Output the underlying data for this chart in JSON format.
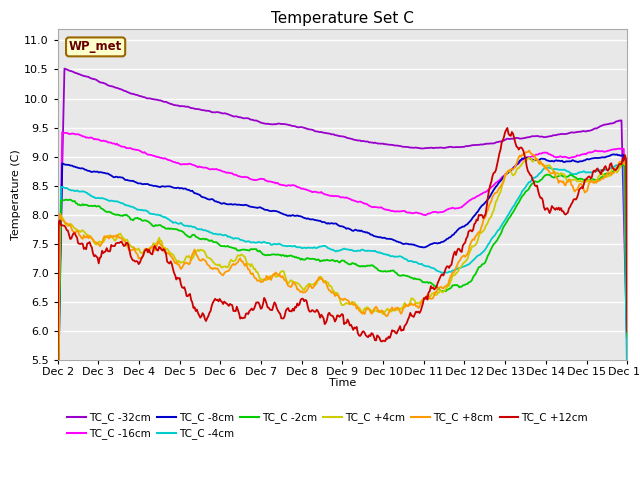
{
  "title": "Temperature Set C",
  "xlabel": "Time",
  "ylabel": "Temperature (C)",
  "ylim": [
    5.5,
    11.2
  ],
  "xlim": [
    0,
    14
  ],
  "xtick_labels": [
    "Dec 2",
    "Dec 3",
    "Dec 4",
    "Dec 5",
    "Dec 6",
    "Dec 7",
    "Dec 8",
    "Dec 9",
    "Dec 10",
    "Dec 11",
    "Dec 12",
    "Dec 13",
    "Dec 14",
    "Dec 15",
    "Dec 16"
  ],
  "ytick_values": [
    5.5,
    6.0,
    6.5,
    7.0,
    7.5,
    8.0,
    8.5,
    9.0,
    9.5,
    10.0,
    10.5,
    11.0
  ],
  "series": {
    "TC_C -32cm": {
      "color": "#9900CC",
      "lw": 1.3
    },
    "TC_C -16cm": {
      "color": "#FF00FF",
      "lw": 1.3
    },
    "TC_C -8cm": {
      "color": "#0000CC",
      "lw": 1.3
    },
    "TC_C -4cm": {
      "color": "#00CCCC",
      "lw": 1.3
    },
    "TC_C -2cm": {
      "color": "#00CC00",
      "lw": 1.3
    },
    "TC_C +4cm": {
      "color": "#CCCC00",
      "lw": 1.3
    },
    "TC_C +8cm": {
      "color": "#FF9900",
      "lw": 1.3
    },
    "TC_C +12cm": {
      "color": "#CC0000",
      "lw": 1.3
    }
  },
  "wp_met_box": {
    "text": "WP_met",
    "facecolor": "#FFFFCC",
    "edgecolor": "#996600",
    "textcolor": "#660000"
  },
  "background_color": "#E8E8E8",
  "grid_color": "#FFFFFF",
  "title_fontsize": 11,
  "label_fontsize": 8,
  "tick_fontsize": 8
}
